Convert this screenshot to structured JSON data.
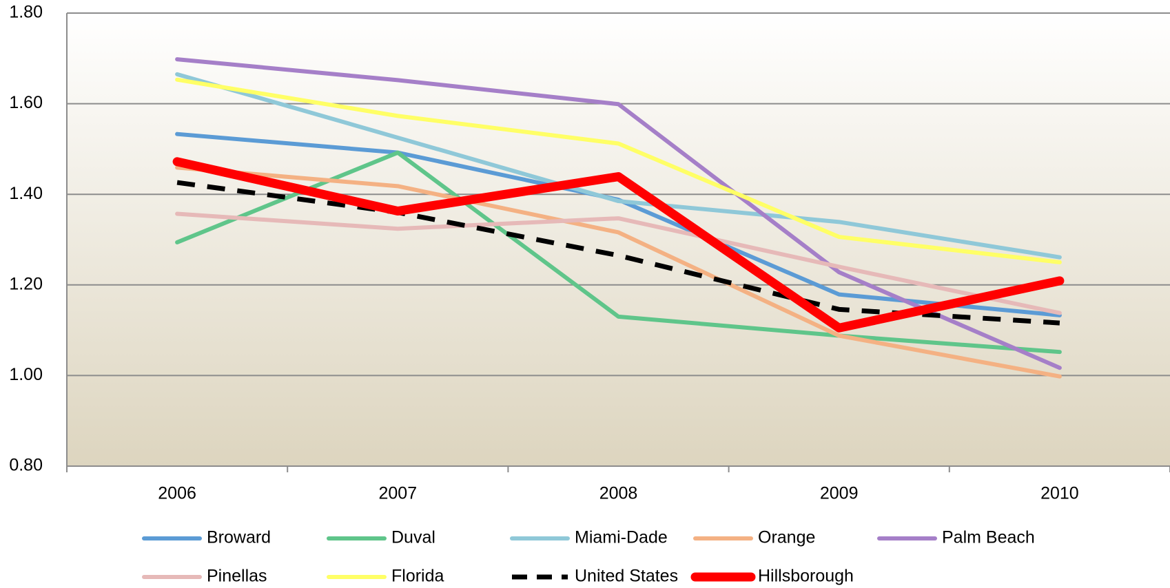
{
  "chart_data": {
    "type": "line",
    "categories": [
      "2006",
      "2007",
      "2008",
      "2009",
      "2010"
    ],
    "ylim": [
      0.8,
      1.8
    ],
    "yticks": [
      {
        "value": 0.8,
        "label": "0.80"
      },
      {
        "value": 1.0,
        "label": "1.00"
      },
      {
        "value": 1.2,
        "label": "1.20"
      },
      {
        "value": 1.4,
        "label": "1.40"
      },
      {
        "value": 1.6,
        "label": "1.60"
      },
      {
        "value": 1.8,
        "label": "1.80"
      }
    ],
    "grid": true,
    "legend": "bottom",
    "series": [
      {
        "name": "Broward",
        "color": "#5b9bd5",
        "width": 6,
        "values": [
          1.533,
          1.492,
          1.388,
          1.179,
          1.133
        ]
      },
      {
        "name": "Duval",
        "color": "#5fc58a",
        "width": 6,
        "values": [
          1.294,
          1.492,
          1.13,
          1.088,
          1.052
        ]
      },
      {
        "name": "Miami-Dade",
        "color": "#8fc8d8",
        "width": 6,
        "values": [
          1.665,
          1.525,
          1.385,
          1.339,
          1.261
        ]
      },
      {
        "name": "Orange",
        "color": "#f4b183",
        "width": 6,
        "values": [
          1.459,
          1.418,
          1.316,
          1.088,
          0.998
        ]
      },
      {
        "name": "Palm Beach",
        "color": "#a57fc8",
        "width": 6,
        "values": [
          1.698,
          1.652,
          1.599,
          1.228,
          1.017
        ]
      },
      {
        "name": "Pinellas",
        "color": "#e6b9b8",
        "width": 6,
        "values": [
          1.357,
          1.324,
          1.347,
          1.24,
          1.138
        ]
      },
      {
        "name": "Florida",
        "color": "#ffff66",
        "width": 6,
        "values": [
          1.653,
          1.573,
          1.512,
          1.306,
          1.25
        ]
      },
      {
        "name": "United States",
        "color": "#000000",
        "width": 7,
        "dashed": true,
        "values": [
          1.426,
          1.36,
          1.265,
          1.146,
          1.116
        ]
      },
      {
        "name": "Hillsborough",
        "color": "#ff0000",
        "width": 13,
        "values": [
          1.472,
          1.363,
          1.439,
          1.105,
          1.209
        ]
      }
    ]
  }
}
